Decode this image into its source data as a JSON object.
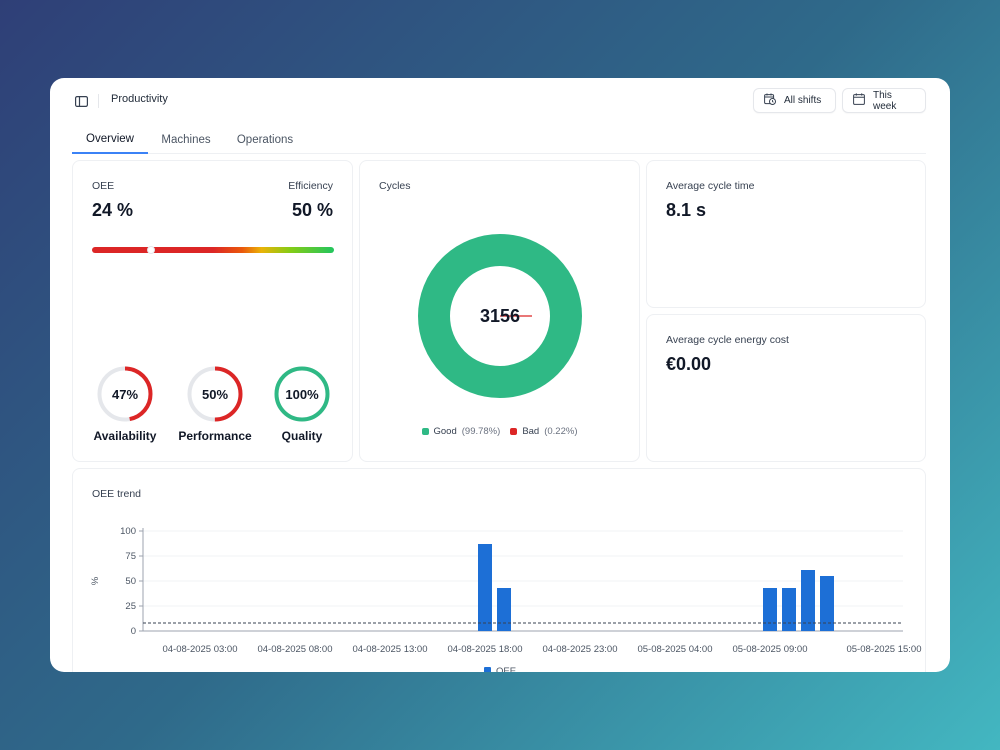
{
  "app": {
    "page_title": "Productivity",
    "filters": {
      "shifts_label": "All shifts",
      "period_label": "This week"
    }
  },
  "tabs": [
    {
      "label": "Overview",
      "active": true
    },
    {
      "label": "Machines",
      "active": false
    },
    {
      "label": "Operations",
      "active": false
    }
  ],
  "oee_card": {
    "oee_label": "OEE",
    "oee_value": "24 %",
    "oee_fraction": 0.24,
    "efficiency_label": "Efficiency",
    "efficiency_value": "50 %",
    "gauges": [
      {
        "name": "Availability",
        "value_text": "47%",
        "fraction": 0.47,
        "color": "#dc2626"
      },
      {
        "name": "Performance",
        "value_text": "50%",
        "fraction": 0.5,
        "color": "#dc2626"
      },
      {
        "name": "Quality",
        "value_text": "100%",
        "fraction": 1.0,
        "color": "#2fb985"
      }
    ]
  },
  "cycles_card": {
    "label": "Cycles",
    "total": "3156",
    "good_label": "Good",
    "good_pct_text": "(99.78%)",
    "good_fraction": 0.9978,
    "good_color": "#2fb985",
    "bad_label": "Bad",
    "bad_pct_text": "(0.22%)",
    "bad_fraction": 0.0022,
    "bad_color": "#dc2626"
  },
  "avg_cycle_time": {
    "label": "Average cycle time",
    "value": "8.1 s"
  },
  "avg_energy_cost": {
    "label": "Average cycle energy cost",
    "value": "€0.00"
  },
  "chart_data": {
    "type": "bar",
    "title": "OEE trend",
    "ylabel": "%",
    "ylim": [
      0,
      100
    ],
    "yticks": [
      0,
      25,
      50,
      75,
      100
    ],
    "x_tick_labels": [
      "04-08-2025 03:00",
      "04-08-2025 08:00",
      "04-08-2025 13:00",
      "04-08-2025 18:00",
      "04-08-2025 23:00",
      "05-08-2025 04:00",
      "05-08-2025 09:00",
      "05-08-2025 15:00"
    ],
    "series": [
      {
        "name": "OEE",
        "color": "#1d6fd6",
        "points": [
          {
            "x": "04-08-2025 18:00",
            "y": 87
          },
          {
            "x": "04-08-2025 19:00",
            "y": 43
          },
          {
            "x": "05-08-2025 09:00",
            "y": 43
          },
          {
            "x": "05-08-2025 10:00",
            "y": 43
          },
          {
            "x": "05-08-2025 11:00",
            "y": 61
          },
          {
            "x": "05-08-2025 12:00",
            "y": 55
          }
        ]
      }
    ],
    "reference_line": {
      "y": 8,
      "style": "dashed"
    },
    "legend_position": "bottom",
    "grid": true
  }
}
